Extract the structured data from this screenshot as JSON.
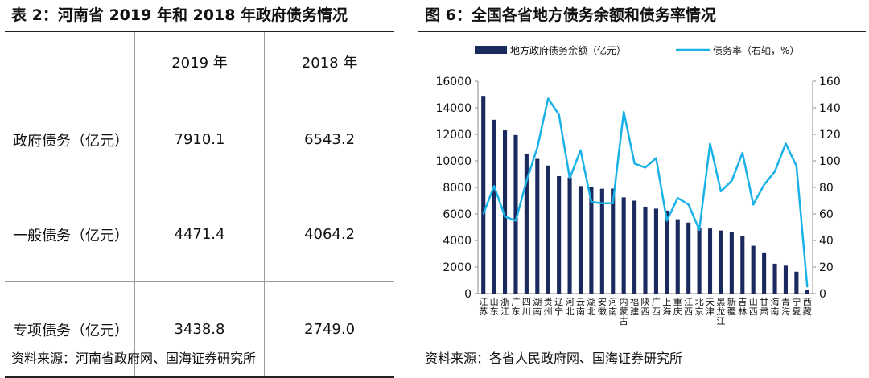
{
  "left_panel": {
    "title": "表 2：河南省 2019 年和 2018 年政府债务情况",
    "columns": [
      "",
      "2019 年",
      "2018 年"
    ],
    "rows": [
      {
        "label": "政府债务（亿元）",
        "y2019": "7910.1",
        "y2018": "6543.2"
      },
      {
        "label": "一般债务（亿元）",
        "y2019": "4471.4",
        "y2018": "4064.2"
      },
      {
        "label": "专项债务（亿元）",
        "y2019": "3438.8",
        "y2018": "2749.0"
      }
    ],
    "source": "资料来源：河南省政府网、国海证券研究所"
  },
  "right_panel": {
    "title": "图 6：全国各省地方债务余额和债务率情况",
    "source": "资料来源：各省人民政府网、国海证券研究所"
  },
  "colors": {
    "bar": "#1a2a5e",
    "line": "#1ab2e6",
    "axis": "#888888",
    "text": "#111111"
  },
  "chart_data": {
    "type": "bar",
    "categories": [
      "江苏",
      "山东",
      "浙江",
      "广东",
      "四川",
      "湖南",
      "贵州",
      "辽宁",
      "河北",
      "云南",
      "湖北",
      "安徽",
      "河南",
      "内蒙古",
      "福建",
      "陕西",
      "广西",
      "上海",
      "重庆",
      "江西",
      "北京",
      "天津",
      "黑龙江",
      "新疆",
      "吉林",
      "山西",
      "甘肃",
      "海南",
      "青海",
      "宁夏",
      "西藏"
    ],
    "category_labels": [
      [
        "江",
        "苏"
      ],
      [
        "山",
        "东"
      ],
      [
        "浙",
        "江"
      ],
      [
        "广",
        "东"
      ],
      [
        "四",
        "川"
      ],
      [
        "湖",
        "南"
      ],
      [
        "贵",
        "州"
      ],
      [
        "辽",
        "宁"
      ],
      [
        "河",
        "北"
      ],
      [
        "云",
        "南"
      ],
      [
        "湖",
        "北"
      ],
      [
        "安",
        "徽"
      ],
      [
        "河",
        "南"
      ],
      [
        "内",
        "蒙",
        "古"
      ],
      [
        "福",
        "建"
      ],
      [
        "陕",
        "西"
      ],
      [
        "广",
        "西"
      ],
      [
        "上",
        "海"
      ],
      [
        "重",
        "庆"
      ],
      [
        "江",
        "西"
      ],
      [
        "北",
        "京"
      ],
      [
        "天",
        "津"
      ],
      [
        "黑",
        "龙",
        "江"
      ],
      [
        "新",
        "疆"
      ],
      [
        "吉",
        "林"
      ],
      [
        "山",
        "西"
      ],
      [
        "甘",
        "肃"
      ],
      [
        "海",
        "南"
      ],
      [
        "青",
        "海"
      ],
      [
        "宁",
        "夏"
      ],
      [
        "西",
        "藏"
      ]
    ],
    "series": [
      {
        "name": "地方政府债务余额（亿元）",
        "kind": "bar",
        "axis": "left",
        "values": [
          14900,
          13100,
          12300,
          11950,
          10550,
          10150,
          9650,
          8850,
          8750,
          8100,
          8000,
          7900,
          7910,
          7250,
          7000,
          6550,
          6400,
          6250,
          5600,
          5350,
          4950,
          4900,
          4750,
          4650,
          4350,
          3600,
          3100,
          2250,
          2100,
          1650,
          250
        ]
      },
      {
        "name": "债务率（右轴，%）",
        "kind": "line",
        "axis": "right",
        "values": [
          60,
          81,
          58,
          55,
          85,
          110,
          147,
          135,
          87,
          108,
          69,
          68,
          68,
          137,
          98,
          95,
          102,
          55,
          72,
          67,
          48,
          113,
          77,
          85,
          106,
          67,
          82,
          92,
          113,
          96,
          5
        ]
      }
    ],
    "left_axis": {
      "min": 0,
      "max": 16000,
      "ticks": [
        "0",
        "2000",
        "4000",
        "6000",
        "8000",
        "10000",
        "12000",
        "14000",
        "16000"
      ]
    },
    "right_axis": {
      "min": 0,
      "max": 160,
      "ticks": [
        "0",
        "20",
        "40",
        "60",
        "80",
        "100",
        "120",
        "140",
        "160"
      ]
    },
    "legend_position": "top",
    "title": "图 6：全国各省地方债务余额和债务率情况",
    "xlabel": "",
    "ylabel": "",
    "y2label": ""
  }
}
